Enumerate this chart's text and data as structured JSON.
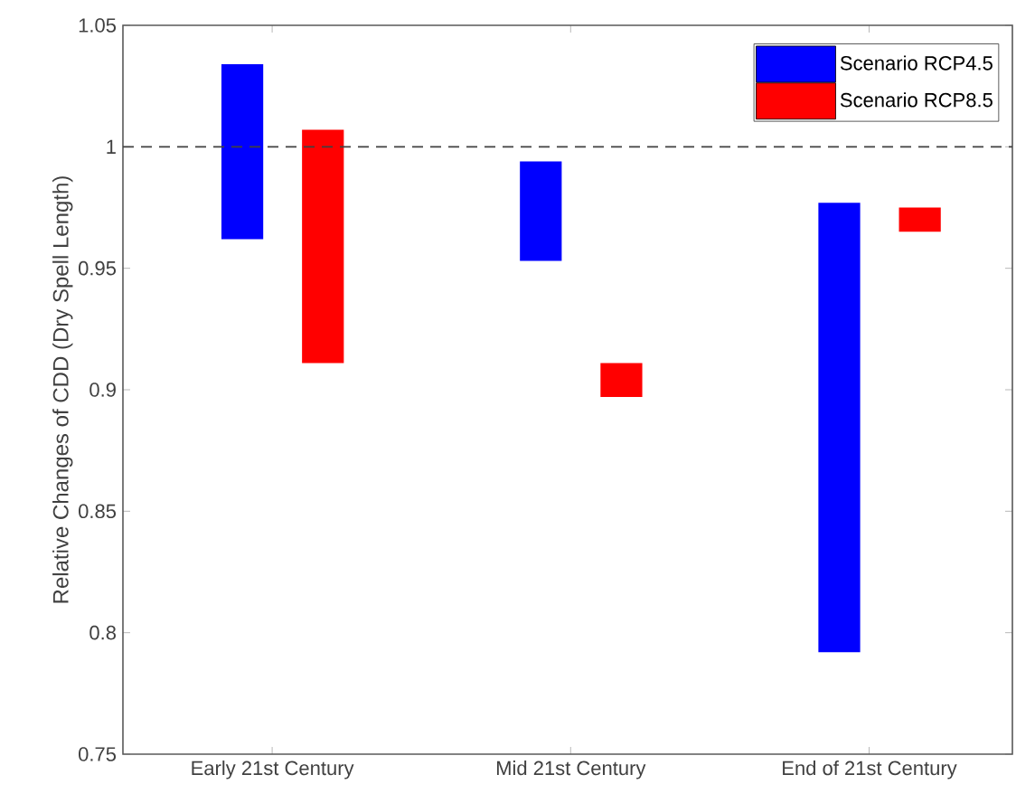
{
  "chart_data": {
    "type": "bar",
    "ylabel": "Relative Changes of CDD (Dry Spell Length)",
    "categories": [
      "Early 21st Century",
      "Mid 21st Century",
      "End of 21st Century"
    ],
    "series": [
      {
        "name": "Scenario RCP4.5",
        "color": "#0000ff",
        "base": [
          0.962,
          0.953,
          0.792
        ],
        "values": [
          0.072,
          0.041,
          0.185
        ]
      },
      {
        "name": "Scenario RCP8.5",
        "color": "#ff0000",
        "base": [
          0.911,
          0.897,
          0.965
        ],
        "values": [
          0.096,
          0.014,
          0.01
        ]
      }
    ],
    "ylim": [
      0.75,
      1.05
    ],
    "yticks": [
      0.75,
      0.8,
      0.85,
      0.9,
      0.95,
      1,
      1.05
    ],
    "ref_lines": [
      {
        "axis": "y",
        "value": 1,
        "color": "#404040",
        "line_style": "dashed"
      }
    ],
    "legend": "top right"
  }
}
